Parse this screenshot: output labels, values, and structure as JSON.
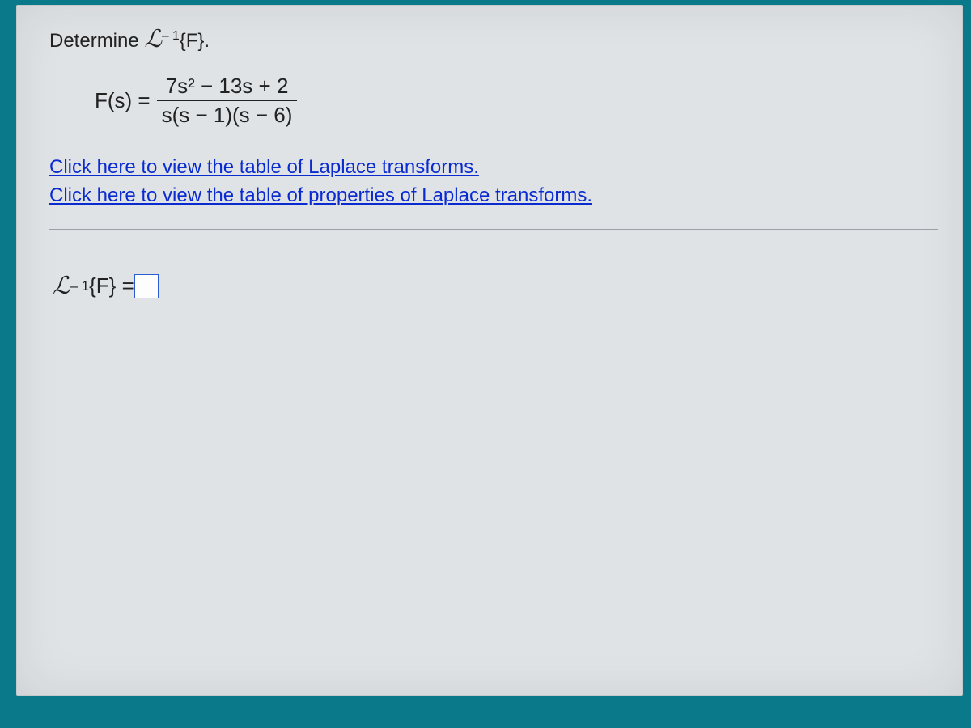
{
  "prompt": {
    "lead": "Determine ",
    "L": "ℒ",
    "sup": "– 1",
    "arg": "{F}.",
    "full_alt": "Determine ℒ⁻¹{F}."
  },
  "equation": {
    "lhs": "F(s) =",
    "numerator": "7s² − 13s + 2",
    "denominator": "s(s − 1)(s − 6)"
  },
  "links": {
    "table": "Click here to view the table of Laplace transforms.",
    "props": "Click here to view the table of properties of Laplace transforms."
  },
  "answer": {
    "L": "ℒ",
    "sup": "– 1",
    "arg": "{F} =",
    "value": ""
  },
  "colors": {
    "page_bg": "#0a7a8a",
    "panel_bg": "#e0e3e6",
    "text": "#222222",
    "link": "#0a2bd0",
    "box_border": "#2a5bd0",
    "rule": "#9aa0a6"
  }
}
